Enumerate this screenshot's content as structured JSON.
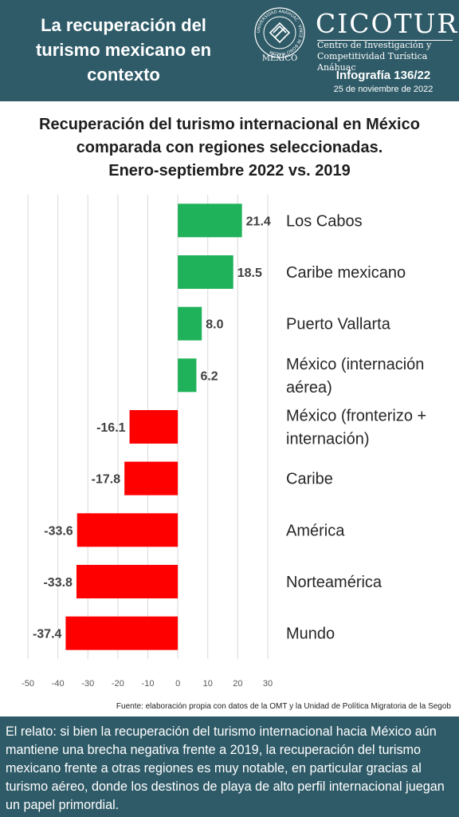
{
  "header": {
    "title_lines": [
      "La recuperación del",
      "turismo mexicano en",
      "contexto"
    ],
    "seal_text": "UNIVERSIDAD ANÁHUAC · VINCE IN BONO MALUM",
    "seal_caption": "MÉXICO",
    "org_name": "CICOTUR",
    "org_sub_lines": [
      "Centro de Investigación y",
      "Competitividad Turística Anáhuac"
    ],
    "infografia": "Infografía 136/22",
    "fecha": "25 de noviembre de 2022"
  },
  "chart_data": {
    "type": "bar",
    "orientation": "horizontal",
    "title_lines": [
      "Recuperación del turismo internacional en México",
      "comparada con regiones seleccionadas.",
      "Enero-septiembre 2022 vs. 2019"
    ],
    "categories": [
      [
        "Los Cabos"
      ],
      [
        "Caribe mexicano"
      ],
      [
        "Puerto Vallarta"
      ],
      [
        "México (internación",
        "aérea)"
      ],
      [
        "México (fronterizo +",
        "internación)"
      ],
      [
        "Caribe"
      ],
      [
        "América"
      ],
      [
        "Norteamérica"
      ],
      [
        "Mundo"
      ]
    ],
    "values": [
      21.4,
      18.5,
      8.0,
      6.2,
      -16.1,
      -17.8,
      -33.6,
      -33.8,
      -37.4
    ],
    "value_labels": [
      "21.4",
      "18.5",
      "8.0",
      "6.2",
      "-16.1",
      "-17.8",
      "-33.6",
      "-33.8",
      "-37.4"
    ],
    "xlim": [
      -50,
      30
    ],
    "xticks": [
      -50,
      -40,
      -30,
      -20,
      -10,
      0,
      10,
      20,
      30
    ],
    "grid": true,
    "colors": {
      "positive": "#1fb25a",
      "negative": "#ff0000",
      "grid": "#d9d9d9",
      "text": "#404040"
    }
  },
  "source": "Fuente: elaboración propia con datos de la OMT y la Unidad de Política Migratoria de la Segob",
  "footer": {
    "text": "El relato: si bien la recuperación del turismo internacional hacia México aún mantiene una brecha negativa frente a 2019, la recuperación del turismo mexicano frente a otras regiones es muy notable, en particular gracias al turismo aéreo, donde los destinos de playa de alto perfil internacional juegan un papel primordial."
  }
}
